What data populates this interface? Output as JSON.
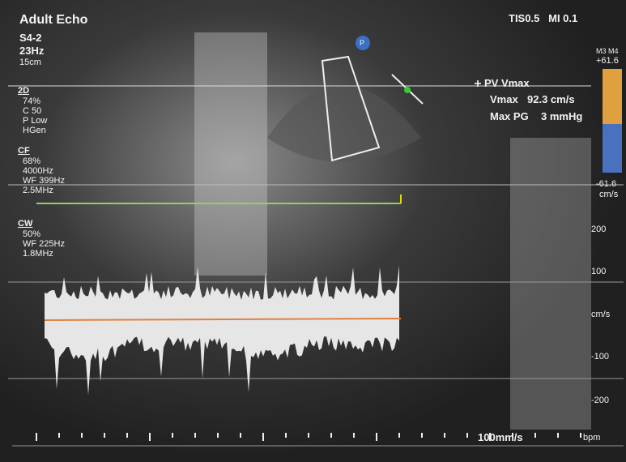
{
  "header": {
    "title": "Adult Echo",
    "probe": "S4-2",
    "frame_rate": "23Hz",
    "depth": "15cm",
    "safety": "TIS0.5   MI 0.1"
  },
  "marker": "P",
  "settings_2d": {
    "label": "2D",
    "lines": [
      "74%",
      "C 50",
      "P Low",
      "HGen"
    ]
  },
  "settings_cf": {
    "label": "CF",
    "lines": [
      "68%",
      "4000Hz",
      "WF 399Hz",
      "2.5MHz"
    ]
  },
  "settings_cw": {
    "label": "CW",
    "lines": [
      "50%",
      "WF 225Hz",
      "1.8MHz"
    ]
  },
  "color_map": {
    "name": "M3 M4",
    "max": "+61.6",
    "min": "-61.6",
    "unit": "cm/s"
  },
  "measurement": {
    "title": "PV Vmax",
    "vmax_label": "Vmax",
    "vmax_value": "92.3 cm/s",
    "pg_label": "Max PG",
    "pg_value": "3 mmHg"
  },
  "doppler_scale": [
    "200",
    "100",
    "cm/s",
    "-100",
    "-200"
  ],
  "footer": {
    "sweep": "100mm/s",
    "heart_rate": "bpm"
  }
}
